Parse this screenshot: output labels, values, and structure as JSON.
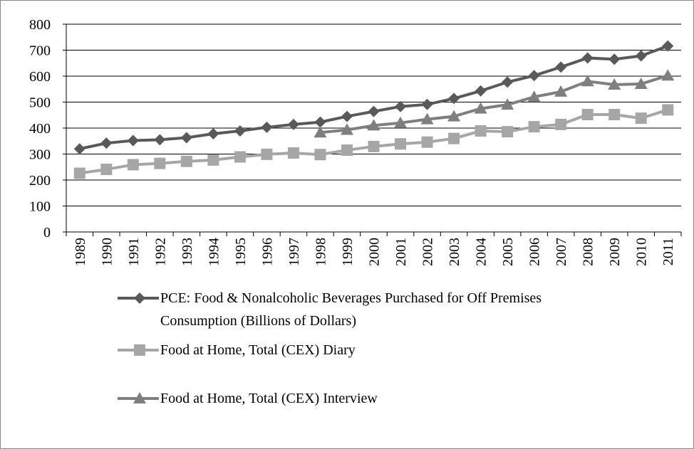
{
  "chart_data": {
    "type": "line",
    "categories": [
      "1989",
      "1990",
      "1991",
      "1992",
      "1993",
      "1994",
      "1995",
      "1996",
      "1997",
      "1998",
      "1999",
      "2000",
      "2001",
      "2002",
      "2003",
      "2004",
      "2005",
      "2006",
      "2007",
      "2008",
      "2009",
      "2010",
      "2011"
    ],
    "series": [
      {
        "name": "PCE: Food & Nonalcoholic Beverages Purchased for Off Premises Consumption (Billions of Dollars)",
        "color": "#595959",
        "marker": "diamond",
        "values": [
          320,
          342,
          352,
          355,
          363,
          378,
          389,
          403,
          414,
          423,
          445,
          464,
          483,
          491,
          514,
          543,
          577,
          602,
          635,
          670,
          665,
          678,
          716
        ]
      },
      {
        "name": "Food at Home, Total (CEX) Diary",
        "color": "#a6a6a6",
        "marker": "square",
        "values": [
          226,
          241,
          259,
          264,
          272,
          277,
          289,
          299,
          304,
          298,
          315,
          329,
          339,
          346,
          360,
          389,
          386,
          405,
          414,
          452,
          452,
          438,
          470
        ]
      },
      {
        "name": "Food at Home, Total (CEX) Interview",
        "color": "#7f7f7f",
        "marker": "triangle",
        "values": [
          null,
          null,
          null,
          null,
          null,
          null,
          null,
          null,
          null,
          383,
          393,
          410,
          420,
          434,
          445,
          475,
          490,
          520,
          540,
          580,
          567,
          570,
          602
        ]
      }
    ],
    "ylim": [
      0,
      800
    ],
    "yticks": [
      0,
      100,
      200,
      300,
      400,
      500,
      600,
      700,
      800
    ],
    "grid": true
  }
}
